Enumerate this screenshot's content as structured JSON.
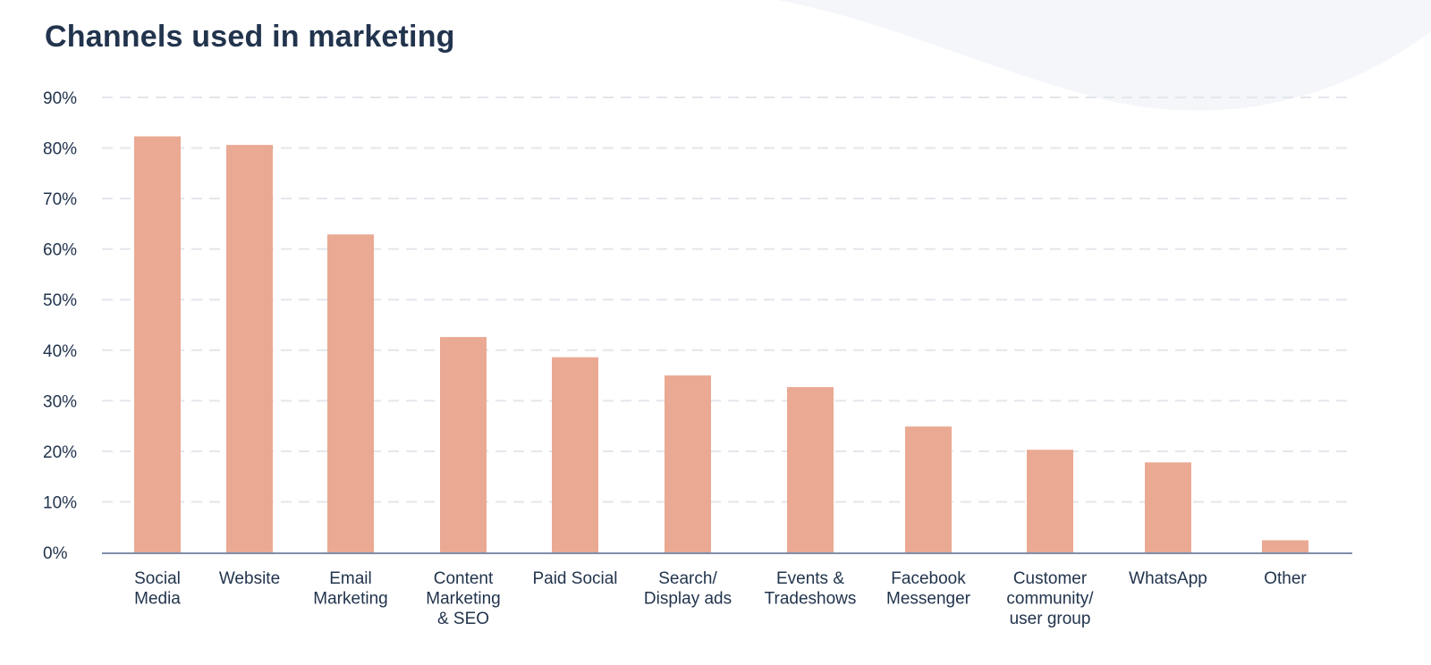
{
  "page": {
    "background_color": "#ffffff",
    "wave_color": "#f4f6fa"
  },
  "chart_data": {
    "type": "bar",
    "title": "Channels used in marketing",
    "xlabel": "",
    "ylabel": "",
    "ylim": [
      0,
      90
    ],
    "y_ticks": [
      0,
      10,
      20,
      30,
      40,
      50,
      60,
      70,
      80,
      90
    ],
    "y_tick_labels": [
      "0%",
      "10%",
      "20%",
      "30%",
      "40%",
      "50%",
      "60%",
      "70%",
      "80%",
      "90%"
    ],
    "grid": true,
    "bar_color": "#eaa993",
    "axis_color": "#7e8fa8",
    "grid_color": "#e3e6ea",
    "text_color": "#22344d",
    "categories": [
      [
        "Social",
        "Media"
      ],
      [
        "Website"
      ],
      [
        "Email",
        "Marketing"
      ],
      [
        "Content",
        "Marketing",
        "& SEO"
      ],
      [
        "Paid Social"
      ],
      [
        "Search/",
        "Display ads"
      ],
      [
        "Events &",
        "Tradeshows"
      ],
      [
        "Facebook",
        "Messenger"
      ],
      [
        "Customer",
        "community/",
        "user group"
      ],
      [
        "WhatsApp"
      ],
      [
        "Other"
      ]
    ],
    "values": [
      82.3,
      80.6,
      62.9,
      42.6,
      38.6,
      35.0,
      32.7,
      24.9,
      20.3,
      17.8,
      2.4
    ]
  }
}
